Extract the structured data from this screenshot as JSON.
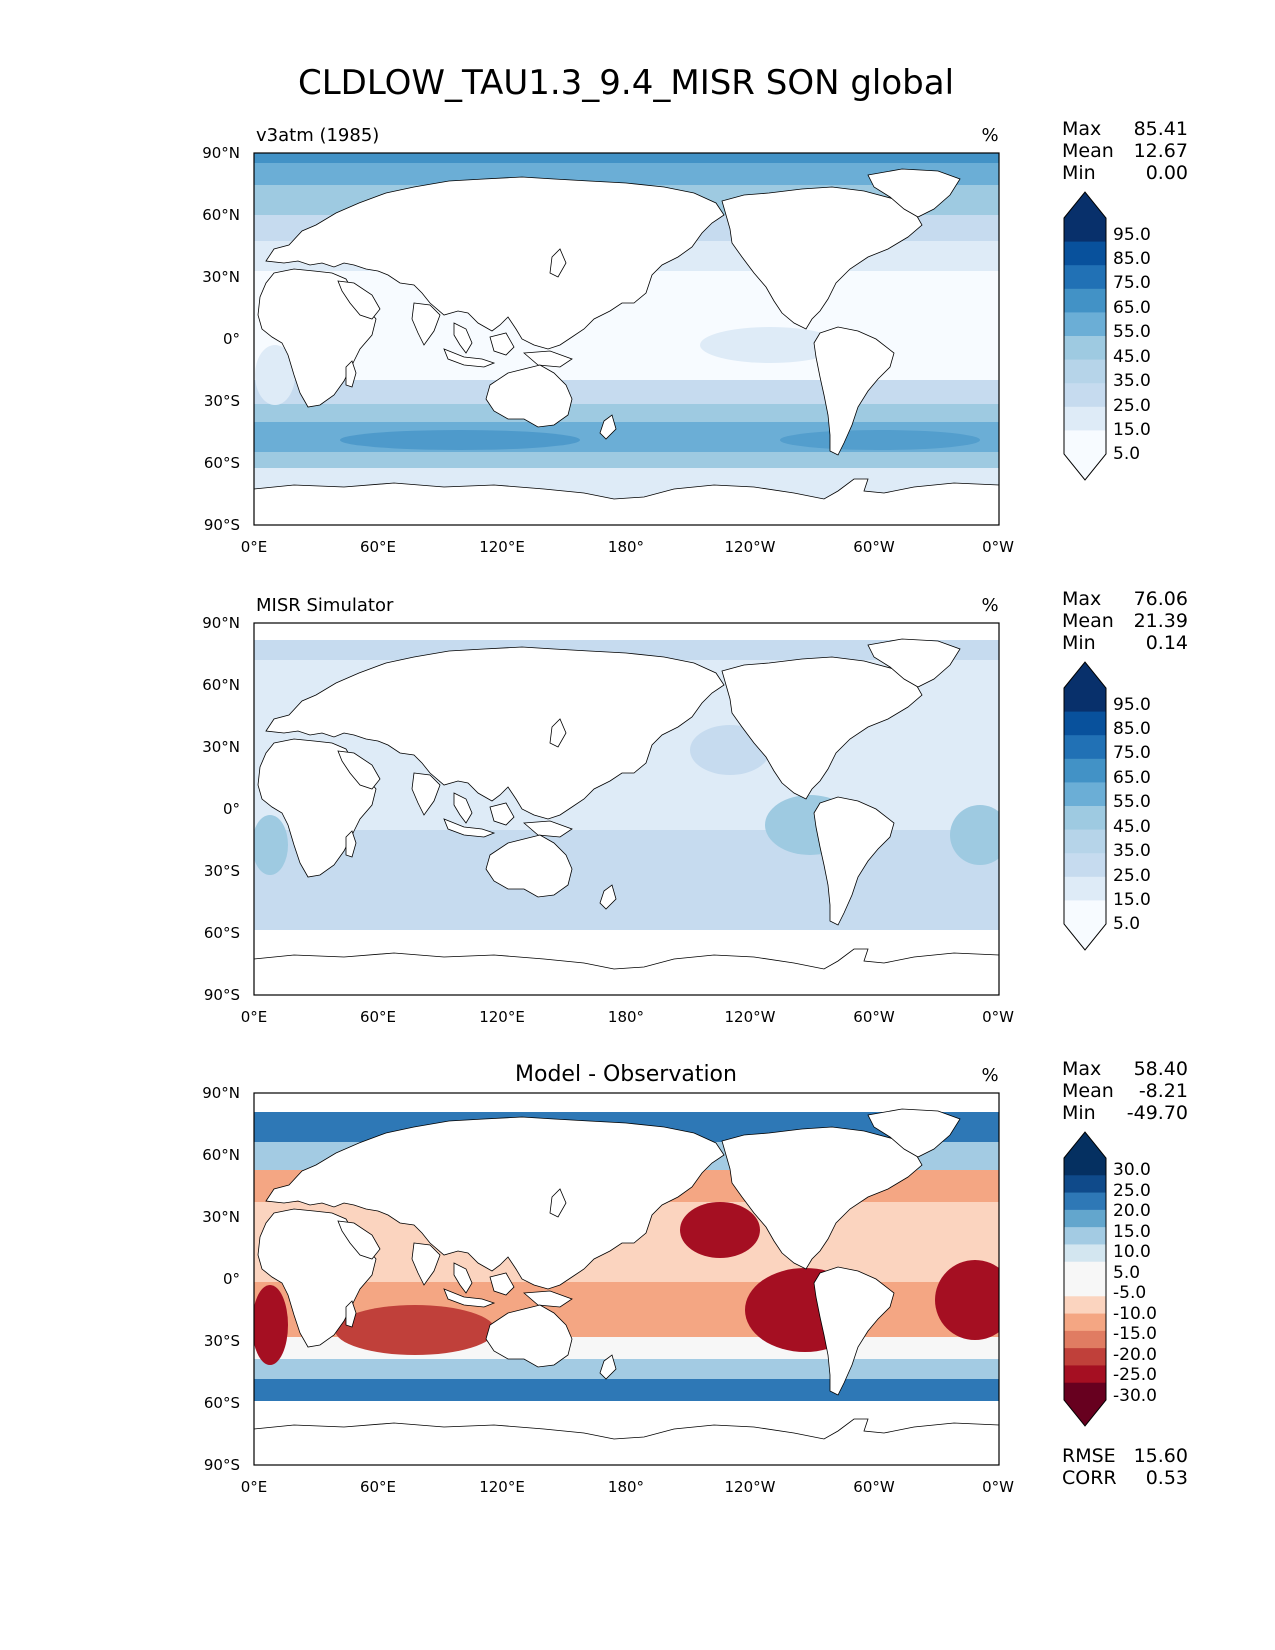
{
  "figure": {
    "title": "CLDLOW_TAU1.3_9.4_MISR SON global"
  },
  "axes": {
    "lat_ticks": [
      "90°N",
      "60°N",
      "30°N",
      "0°",
      "30°S",
      "60°S",
      "90°S"
    ],
    "lon_ticks": [
      "0°E",
      "60°E",
      "120°E",
      "180°",
      "120°W",
      "60°W",
      "0°W"
    ]
  },
  "colors": {
    "blues": [
      "#f7fbff",
      "#deebf7",
      "#c6dbef",
      "#b6d4e9",
      "#9ecae1",
      "#6baed6",
      "#4292c6",
      "#2171b5",
      "#08519c",
      "#08306b"
    ],
    "diverging": [
      "#67001f",
      "#a50f22",
      "#c0403a",
      "#e07c62",
      "#f4a683",
      "#fbd4bf",
      "#f7f7f7",
      "#f7f7f7",
      "#d3e6f0",
      "#a3cbe3",
      "#63a6cd",
      "#2e78b6",
      "#0f4a8a",
      "#053061"
    ],
    "land": "#ffffff",
    "coast": "#000000"
  },
  "panels": [
    {
      "id": "test",
      "left_title": "v3atm (1985)",
      "center_title": "",
      "units": "%",
      "stats": [
        {
          "label": "Max",
          "value": "85.41"
        },
        {
          "label": "Mean",
          "value": "12.67"
        },
        {
          "label": "Min",
          "value": "0.00"
        }
      ],
      "colorbar_labels": [
        "95.0",
        "85.0",
        "75.0",
        "65.0",
        "55.0",
        "45.0",
        "35.0",
        "25.0",
        "15.0",
        "5.0"
      ],
      "extra_stats": []
    },
    {
      "id": "ref",
      "left_title": "MISR Simulator",
      "center_title": "",
      "units": "%",
      "stats": [
        {
          "label": "Max",
          "value": "76.06"
        },
        {
          "label": "Mean",
          "value": "21.39"
        },
        {
          "label": "Min",
          "value": "0.14"
        }
      ],
      "colorbar_labels": [
        "95.0",
        "85.0",
        "75.0",
        "65.0",
        "55.0",
        "45.0",
        "35.0",
        "25.0",
        "15.0",
        "5.0"
      ],
      "extra_stats": []
    },
    {
      "id": "diff",
      "left_title": "",
      "center_title": "Model - Observation",
      "units": "%",
      "stats": [
        {
          "label": "Max",
          "value": "58.40"
        },
        {
          "label": "Mean",
          "value": "-8.21"
        },
        {
          "label": "Min",
          "value": "-49.70"
        }
      ],
      "colorbar_labels": [
        "30.0",
        "25.0",
        "20.0",
        "15.0",
        "10.0",
        "5.0",
        "-5.0",
        "-10.0",
        "-15.0",
        "-20.0",
        "-25.0",
        "-30.0"
      ],
      "extra_stats": [
        {
          "label": "RMSE",
          "value": "15.60"
        },
        {
          "label": "CORR",
          "value": "0.53"
        }
      ]
    }
  ]
}
